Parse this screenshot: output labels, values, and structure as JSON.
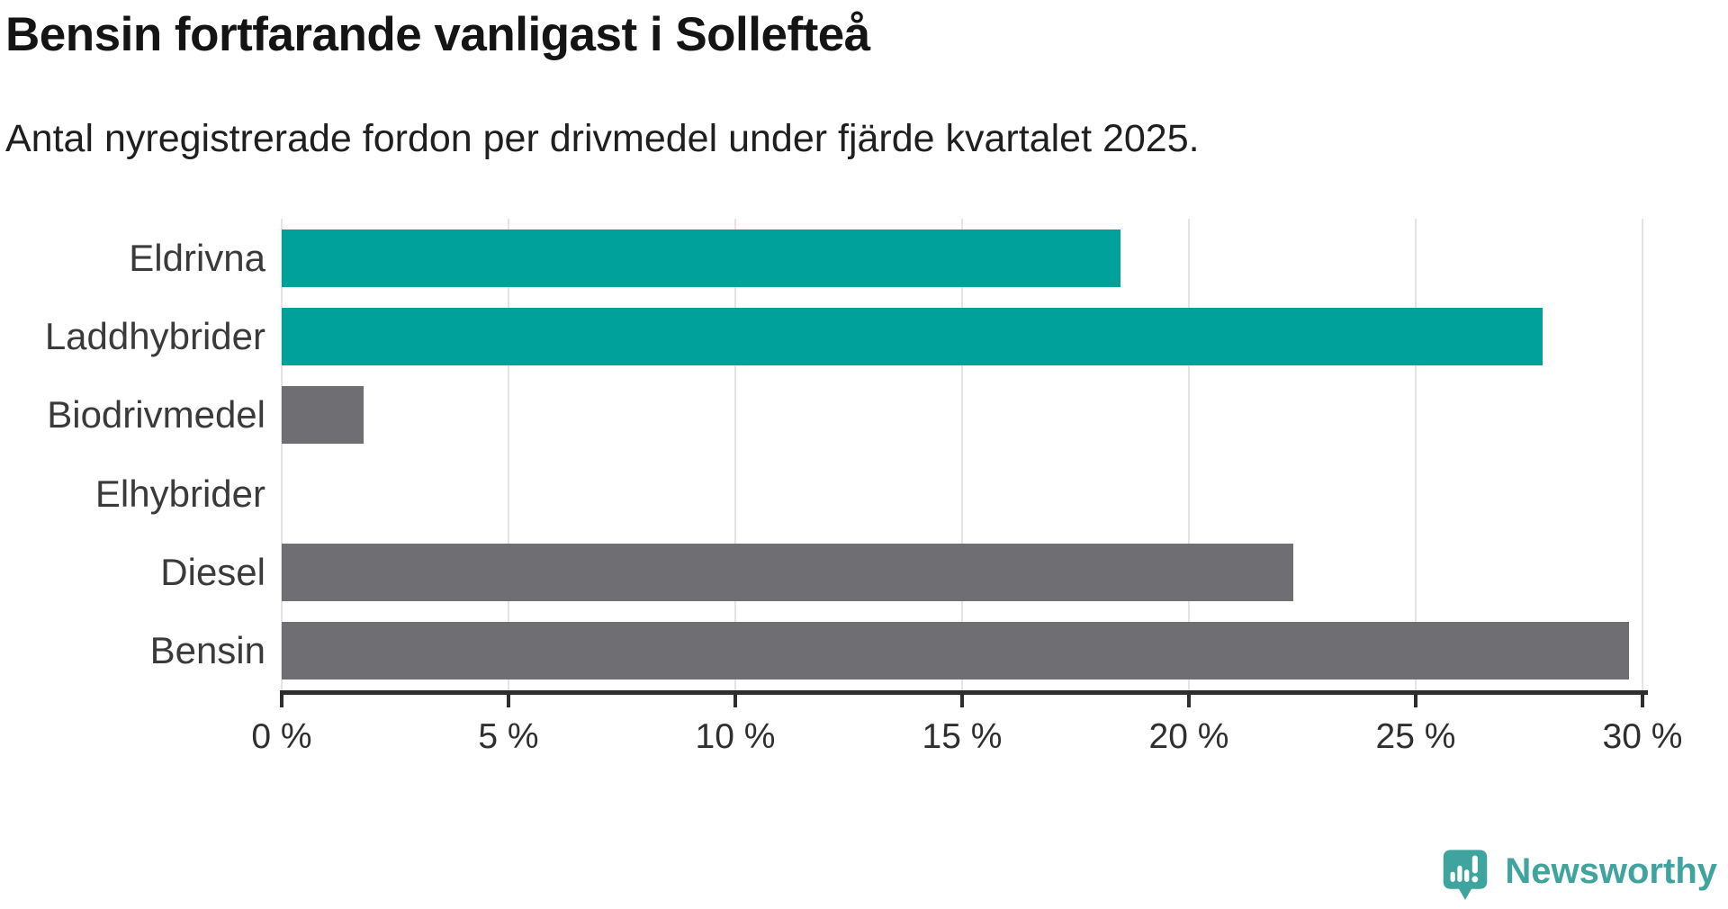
{
  "title": "Bensin fortfarande vanligast i Sollefteå",
  "subtitle": "Antal nyregistrerade fordon per drivmedel under fjärde kvartalet 2025.",
  "chart_data": {
    "type": "bar",
    "orientation": "horizontal",
    "title": "Bensin fortfarande vanligast i Sollefteå",
    "subtitle": "Antal nyregistrerade fordon per drivmedel under fjärde kvartalet 2025.",
    "categories": [
      "Eldrivna",
      "Laddhybrider",
      "Biodrivmedel",
      "Elhybrider",
      "Diesel",
      "Bensin"
    ],
    "values": [
      18.5,
      27.8,
      1.8,
      0,
      22.3,
      29.7
    ],
    "unit": "%",
    "xlim": [
      0,
      30
    ],
    "x_ticks": [
      0,
      5,
      10,
      15,
      20,
      25,
      30
    ],
    "x_tick_labels": [
      "0 %",
      "5 %",
      "10 %",
      "15 %",
      "20 %",
      "25 %",
      "30 %"
    ],
    "bar_colors": [
      "#00a19a",
      "#00a19a",
      "#6e6e73",
      "#6e6e73",
      "#6e6e73",
      "#6e6e73"
    ],
    "grid": true,
    "legend": false
  },
  "colors": {
    "teal": "#00a19a",
    "gray": "#6e6e73",
    "axis": "#2e2e2e",
    "gridline": "#e4e4e4",
    "logo_teal": "#3fa39e"
  },
  "branding": {
    "logo_text": "Newsworthy",
    "logo_icon": "newsworthy-bubble-chart-icon"
  }
}
